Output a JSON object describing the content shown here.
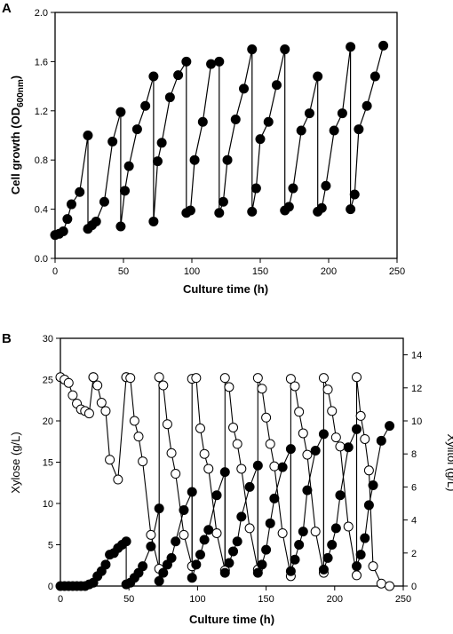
{
  "chart_data": [
    {
      "panel": "A",
      "type": "line",
      "xlabel": "Culture time (h)",
      "ylabel_main": "Cell growth (OD",
      "ylabel_sub": "600nm",
      "ylabel_end": ")",
      "xlim": [
        0,
        250
      ],
      "ylim": [
        0,
        2.0
      ],
      "xticks": [
        0,
        50,
        100,
        150,
        200,
        250
      ],
      "yticks": [
        0.0,
        0.4,
        0.8,
        1.2,
        1.6,
        2.0
      ],
      "ytick_labels": [
        "0.0",
        "0.4",
        "0.8",
        "1.2",
        "1.6",
        "2.0"
      ],
      "grid": false,
      "series": [
        {
          "marker": "filled-circle",
          "x": [
            0,
            3,
            6,
            9,
            12,
            18,
            24,
            24,
            27,
            30,
            36,
            42,
            48,
            48,
            51,
            54,
            60,
            66,
            72,
            72,
            75,
            78,
            84,
            90,
            96,
            96,
            99,
            102,
            108,
            114,
            120,
            120,
            123,
            126,
            132,
            138,
            144,
            144,
            147,
            150,
            156,
            162,
            168,
            168,
            171,
            174,
            180,
            186,
            192,
            192,
            195,
            198,
            204,
            210,
            216,
            216,
            219,
            222,
            228,
            234,
            240
          ],
          "y": [
            0.19,
            0.2,
            0.22,
            0.32,
            0.44,
            0.54,
            1.0,
            0.24,
            0.27,
            0.3,
            0.46,
            0.95,
            1.19,
            0.26,
            0.55,
            0.75,
            1.05,
            1.24,
            1.48,
            0.3,
            0.79,
            0.94,
            1.31,
            1.49,
            1.6,
            0.37,
            0.39,
            0.8,
            1.11,
            1.58,
            1.6,
            0.37,
            0.46,
            0.8,
            1.13,
            1.38,
            1.7,
            0.38,
            0.57,
            0.97,
            1.11,
            1.41,
            1.7,
            0.39,
            0.42,
            0.57,
            1.04,
            1.18,
            1.48,
            0.38,
            0.41,
            0.59,
            1.04,
            1.18,
            1.72,
            0.4,
            0.52,
            1.05,
            1.24,
            1.48,
            1.73
          ]
        }
      ]
    },
    {
      "panel": "B",
      "type": "line",
      "xlabel": "Culture time (h)",
      "ylabel": "Xylose (g/L)",
      "y2label": "Xylitol (g/L)",
      "xlim": [
        0,
        250
      ],
      "ylim": [
        0,
        30
      ],
      "y2lim": [
        0,
        15
      ],
      "xticks": [
        0,
        50,
        100,
        150,
        200,
        250
      ],
      "yticks": [
        0,
        5,
        10,
        15,
        20,
        25,
        30
      ],
      "y2ticks": [
        0,
        2,
        4,
        6,
        8,
        10,
        12,
        14
      ],
      "grid": false,
      "series": [
        {
          "axis": "left",
          "marker": "open-circle",
          "x": [
            0,
            3,
            6,
            9,
            12,
            15,
            18,
            21,
            24,
            24,
            27,
            30,
            33,
            36,
            42,
            48,
            48,
            51,
            54,
            57,
            60,
            66,
            72,
            72,
            75,
            78,
            81,
            84,
            90,
            96,
            96,
            99,
            102,
            105,
            108,
            114,
            120,
            120,
            123,
            126,
            129,
            132,
            138,
            144,
            144,
            147,
            150,
            153,
            156,
            162,
            168,
            168,
            171,
            174,
            177,
            180,
            186,
            192,
            192,
            195,
            198,
            201,
            204,
            210,
            216,
            216,
            219,
            222,
            225,
            228,
            234,
            240
          ],
          "y": [
            25.3,
            25.0,
            24.6,
            23.1,
            22.1,
            21.4,
            21.2,
            20.9,
            25.3,
            25.3,
            24.3,
            22.2,
            21.2,
            15.3,
            12.9,
            25.3,
            25.3,
            25.2,
            20.0,
            18.1,
            15.1,
            6.2,
            2.1,
            25.3,
            24.3,
            19.6,
            16.1,
            13.6,
            6.2,
            2.4,
            25.1,
            25.2,
            19.1,
            16.0,
            14.2,
            6.4,
            1.9,
            25.2,
            24.1,
            19.2,
            17.2,
            14.2,
            7.0,
            2.0,
            25.2,
            23.9,
            20.4,
            17.2,
            14.5,
            6.4,
            1.2,
            25.1,
            24.2,
            21.1,
            18.5,
            15.9,
            6.6,
            1.6,
            25.2,
            23.8,
            21.2,
            18.0,
            16.9,
            7.2,
            1.3,
            25.3,
            20.6,
            17.8,
            14.0,
            2.4,
            0.3,
            0.0
          ]
        },
        {
          "axis": "right",
          "marker": "filled-circle",
          "x": [
            0,
            3,
            6,
            9,
            12,
            15,
            18,
            21,
            24,
            27,
            30,
            33,
            36,
            39,
            42,
            45,
            48,
            48,
            51,
            54,
            57,
            60,
            66,
            72,
            72,
            75,
            78,
            81,
            84,
            90,
            96,
            96,
            99,
            102,
            105,
            108,
            114,
            120,
            120,
            123,
            126,
            129,
            132,
            138,
            144,
            144,
            147,
            150,
            153,
            156,
            162,
            168,
            168,
            171,
            174,
            177,
            180,
            186,
            192,
            192,
            195,
            198,
            201,
            204,
            210,
            216,
            216,
            219,
            222,
            225,
            228,
            234,
            240
          ],
          "y": [
            0.0,
            0.0,
            0.0,
            0.0,
            0.0,
            0.0,
            0.0,
            0.1,
            0.2,
            0.6,
            0.9,
            1.3,
            1.9,
            2.0,
            2.3,
            2.5,
            2.7,
            0.1,
            0.2,
            0.5,
            0.8,
            1.2,
            2.4,
            4.7,
            0.3,
            0.8,
            1.3,
            1.7,
            2.7,
            4.6,
            5.7,
            0.5,
            1.3,
            1.9,
            2.8,
            3.4,
            5.5,
            6.9,
            0.8,
            1.4,
            2.1,
            2.7,
            4.2,
            6.0,
            7.3,
            0.8,
            1.3,
            2.2,
            3.8,
            5.3,
            7.2,
            8.3,
            0.9,
            1.6,
            2.5,
            3.3,
            5.8,
            8.2,
            9.2,
            1.0,
            1.7,
            2.5,
            3.5,
            5.5,
            8.4,
            9.5,
            1.2,
            1.9,
            2.9,
            4.9,
            6.1,
            8.8,
            9.7
          ]
        }
      ]
    }
  ]
}
